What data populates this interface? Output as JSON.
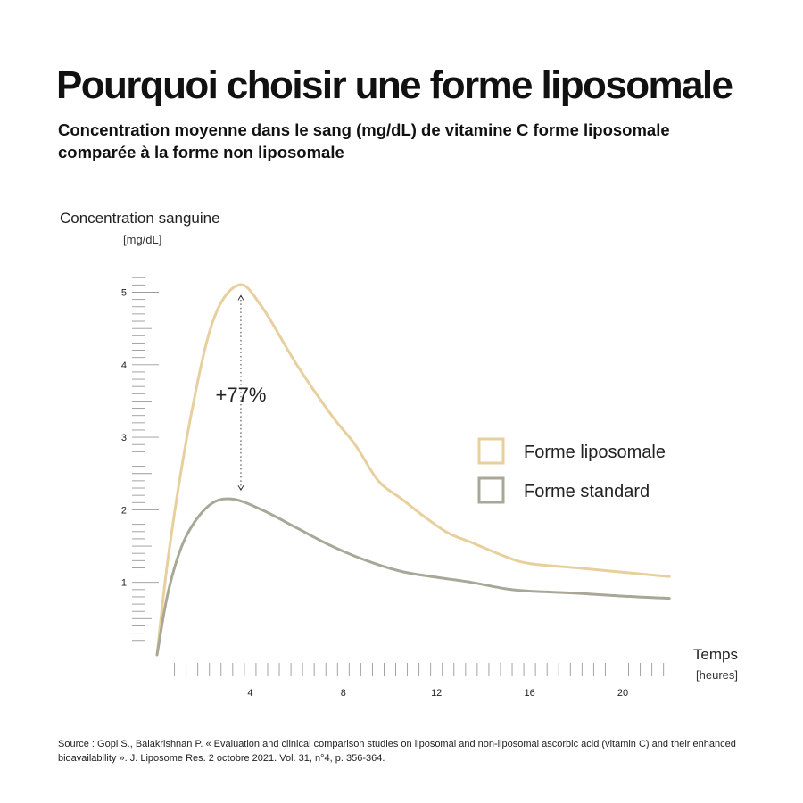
{
  "title": "Pourquoi choisir une forme liposomale",
  "subtitle": "Concentration moyenne dans le sang (mg/dL) de vitamine C forme liposomale comparée à la forme non liposomale",
  "source": "Source : Gopi S., Balakrishnan P. « Evaluation and clinical comparison studies on liposomal and non-liposomal ascorbic acid (vitamin C) and their enhanced bioavailability ». J. Liposome Res. 2 octobre 2021. Vol. 31, n°4, p. 356-364.",
  "chart_data": {
    "type": "line",
    "ylabel": "Concentration sanguine",
    "yunit": "[mg/dL]",
    "xlabel": "Temps",
    "xunit": "[heures]",
    "ylim": [
      0,
      5.3
    ],
    "xlim": [
      0,
      22
    ],
    "yticks": [
      1,
      2,
      3,
      4,
      5
    ],
    "xticks": [
      4,
      8,
      12,
      16,
      20
    ],
    "annotation": "+77%",
    "annotation_x": 3.6,
    "grid": false,
    "legend_position": "right",
    "colors": {
      "liposomal": "#E8CF9E",
      "standard": "#A9A797",
      "axis": "#999999",
      "text": "#222222"
    },
    "series": [
      {
        "name": "Forme liposomale",
        "color": "#E8CF9E",
        "points": [
          [
            0,
            0
          ],
          [
            0.5,
            1.4
          ],
          [
            1.4,
            3.2
          ],
          [
            2.4,
            4.6
          ],
          [
            3.5,
            5.1
          ],
          [
            4.5,
            4.8
          ],
          [
            6,
            4.0
          ],
          [
            7.5,
            3.3
          ],
          [
            8.5,
            2.9
          ],
          [
            9.5,
            2.4
          ],
          [
            10.5,
            2.15
          ],
          [
            11.5,
            1.9
          ],
          [
            12.5,
            1.68
          ],
          [
            13.5,
            1.55
          ],
          [
            15,
            1.35
          ],
          [
            16,
            1.26
          ],
          [
            18,
            1.2
          ],
          [
            22,
            1.08
          ]
        ]
      },
      {
        "name": "Forme standard",
        "color": "#A9A797",
        "points": [
          [
            0,
            0
          ],
          [
            0.5,
            0.9
          ],
          [
            1.2,
            1.6
          ],
          [
            2.2,
            2.05
          ],
          [
            3.2,
            2.15
          ],
          [
            4.5,
            2.0
          ],
          [
            6,
            1.75
          ],
          [
            7.5,
            1.5
          ],
          [
            9,
            1.3
          ],
          [
            10.5,
            1.15
          ],
          [
            12,
            1.07
          ],
          [
            13.5,
            1.0
          ],
          [
            15,
            0.91
          ],
          [
            16,
            0.88
          ],
          [
            18,
            0.85
          ],
          [
            20,
            0.81
          ],
          [
            22,
            0.78
          ]
        ]
      }
    ]
  }
}
